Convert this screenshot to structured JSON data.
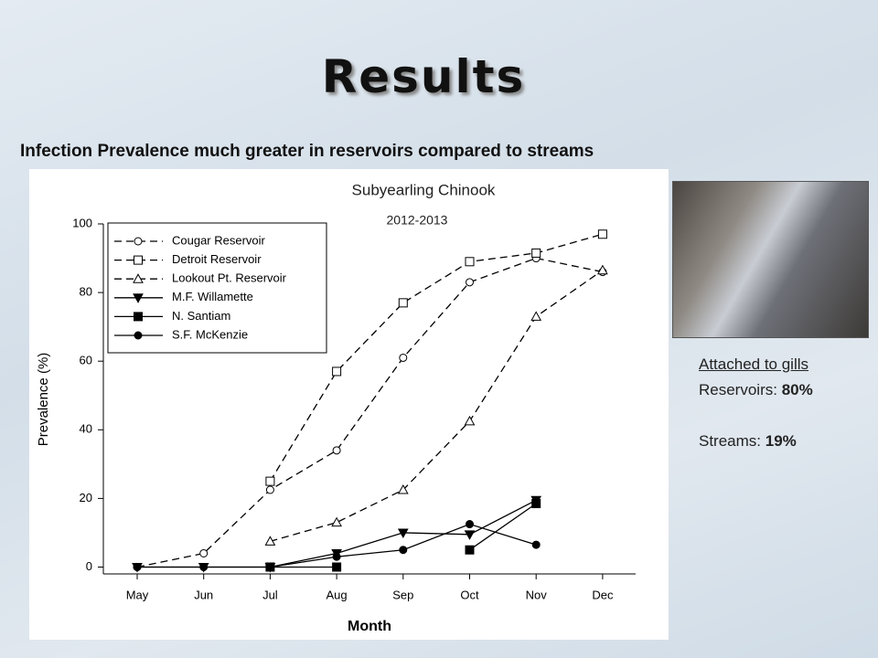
{
  "slide": {
    "title": "Results",
    "subtitle": "Infection Prevalence much greater in reservoirs compared to streams",
    "note_heading": "Attached  to gills",
    "notes": [
      {
        "label": "Reservoirs:",
        "value": "80%"
      },
      {
        "label": "Streams:",
        "value": "19%"
      }
    ]
  },
  "chart_data": {
    "type": "line",
    "title": "Subyearling Chinook",
    "subtitle": "2012-2013",
    "x_label": "Month",
    "y_label": "Prevalence (%)",
    "categories": [
      "May",
      "Jun",
      "Jul",
      "Aug",
      "Sep",
      "Oct",
      "Nov",
      "Dec"
    ],
    "ylim": [
      -2,
      100
    ],
    "yticks": [
      0,
      20,
      40,
      60,
      80,
      100
    ],
    "legend": "top-left",
    "series": [
      {
        "name": "Cougar Reservoir",
        "color": "#000000",
        "dash": true,
        "marker": "circle-open",
        "values": [
          0,
          4,
          22.5,
          34,
          61,
          83,
          90,
          86
        ]
      },
      {
        "name": "Detroit Reservoir",
        "color": "#000000",
        "dash": true,
        "marker": "square-open",
        "values": [
          null,
          null,
          25,
          57,
          77,
          89,
          91.5,
          97
        ]
      },
      {
        "name": "Lookout Pt. Reservoir",
        "color": "#000000",
        "dash": true,
        "marker": "triangle-open",
        "values": [
          null,
          null,
          7.5,
          13,
          22.5,
          42.5,
          73,
          86.5
        ]
      },
      {
        "name": "M.F. Willamette",
        "color": "#000000",
        "dash": false,
        "marker": "triangle-down",
        "values": [
          0,
          0,
          0,
          4,
          10,
          9.5,
          19.5,
          null
        ]
      },
      {
        "name": "N. Santiam",
        "color": "#000000",
        "dash": false,
        "marker": "square",
        "values": [
          null,
          null,
          0,
          0,
          null,
          5,
          18.5,
          null
        ]
      },
      {
        "name": "S.F. McKenzie",
        "color": "#000000",
        "dash": false,
        "marker": "circle",
        "values": [
          0,
          0,
          0,
          3,
          5,
          12.5,
          6.5,
          null
        ]
      }
    ]
  }
}
